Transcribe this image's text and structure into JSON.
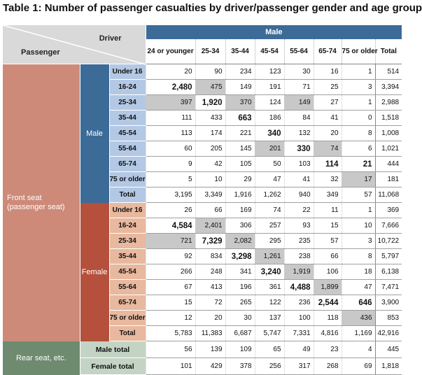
{
  "title": "Table 1: Number of passenger casualties by driver/passenger gender and age group",
  "corner": {
    "driver": "Driver",
    "passenger": "Passenger"
  },
  "male_header": "Male",
  "columns": [
    "24 or younger",
    "25-34",
    "35-44",
    "45-54",
    "55-64",
    "65-74",
    "75 or older",
    "Total"
  ],
  "front_seat_label": "Front seat\n(passenger seat)",
  "groups": [
    {
      "label": "Male",
      "rows": [
        {
          "age": "Under 16",
          "values": [
            "20",
            "90",
            "234",
            "123",
            "30",
            "16",
            "1",
            "514"
          ],
          "bold": [],
          "gray": []
        },
        {
          "age": "16-24",
          "values": [
            "2,480",
            "475",
            "149",
            "191",
            "71",
            "25",
            "3",
            "3,394"
          ],
          "bold": [
            0
          ],
          "gray": [
            1
          ]
        },
        {
          "age": "25-34",
          "values": [
            "397",
            "1,920",
            "370",
            "124",
            "149",
            "27",
            "1",
            "2,988"
          ],
          "bold": [
            1
          ],
          "gray": [
            0,
            2,
            4
          ]
        },
        {
          "age": "35-44",
          "values": [
            "111",
            "433",
            "663",
            "186",
            "84",
            "41",
            "0",
            "1,518"
          ],
          "bold": [
            2
          ],
          "gray": []
        },
        {
          "age": "45-54",
          "values": [
            "113",
            "174",
            "221",
            "340",
            "132",
            "20",
            "8",
            "1,008"
          ],
          "bold": [
            3
          ],
          "gray": []
        },
        {
          "age": "55-64",
          "values": [
            "60",
            "205",
            "145",
            "201",
            "330",
            "74",
            "6",
            "1,021"
          ],
          "bold": [
            4
          ],
          "gray": [
            3,
            5
          ]
        },
        {
          "age": "65-74",
          "values": [
            "9",
            "42",
            "105",
            "50",
            "103",
            "114",
            "21",
            "444"
          ],
          "bold": [
            5,
            6
          ],
          "gray": []
        },
        {
          "age": "75 or older",
          "values": [
            "5",
            "10",
            "29",
            "47",
            "41",
            "32",
            "17",
            "181"
          ],
          "bold": [],
          "gray": [
            6
          ]
        },
        {
          "age": "Total",
          "values": [
            "3,195",
            "3,349",
            "1,916",
            "1,262",
            "940",
            "349",
            "57",
            "11,068"
          ],
          "bold": [],
          "gray": [],
          "total": true
        }
      ]
    },
    {
      "label": "Female",
      "rows": [
        {
          "age": "Under 16",
          "values": [
            "26",
            "66",
            "169",
            "74",
            "22",
            "11",
            "1",
            "369"
          ],
          "bold": [],
          "gray": []
        },
        {
          "age": "16-24",
          "values": [
            "4,584",
            "2,401",
            "306",
            "257",
            "93",
            "15",
            "10",
            "7,666"
          ],
          "bold": [
            0
          ],
          "gray": [
            1
          ]
        },
        {
          "age": "25-34",
          "values": [
            "721",
            "7,329",
            "2,082",
            "295",
            "235",
            "57",
            "3",
            "10,722"
          ],
          "bold": [
            1
          ],
          "gray": [
            0,
            2
          ]
        },
        {
          "age": "35-44",
          "values": [
            "92",
            "834",
            "3,298",
            "1,261",
            "238",
            "66",
            "8",
            "5,797"
          ],
          "bold": [
            2
          ],
          "gray": [
            3
          ]
        },
        {
          "age": "45-54",
          "values": [
            "266",
            "248",
            "341",
            "3,240",
            "1,919",
            "106",
            "18",
            "6,138"
          ],
          "bold": [
            3
          ],
          "gray": [
            4
          ]
        },
        {
          "age": "55-64",
          "values": [
            "67",
            "413",
            "196",
            "361",
            "4,488",
            "1,899",
            "47",
            "7,471"
          ],
          "bold": [
            4
          ],
          "gray": [
            5
          ]
        },
        {
          "age": "65-74",
          "values": [
            "15",
            "72",
            "265",
            "122",
            "236",
            "2,544",
            "646",
            "3,900"
          ],
          "bold": [
            5,
            6
          ],
          "gray": []
        },
        {
          "age": "75 or older",
          "values": [
            "12",
            "20",
            "30",
            "137",
            "100",
            "118",
            "436",
            "853"
          ],
          "bold": [],
          "gray": [
            6
          ]
        },
        {
          "age": "Total",
          "values": [
            "5,783",
            "11,383",
            "6,687",
            "5,747",
            "7,331",
            "4,816",
            "1,169",
            "42,916"
          ],
          "bold": [],
          "gray": [],
          "total": true
        }
      ]
    }
  ],
  "rear": {
    "label": "Rear seat, etc.",
    "rows": [
      {
        "label": "Male total",
        "values": [
          "56",
          "139",
          "109",
          "65",
          "49",
          "23",
          "4",
          "445"
        ]
      },
      {
        "label": "Female total",
        "values": [
          "101",
          "429",
          "378",
          "256",
          "317",
          "268",
          "69",
          "1,818"
        ]
      }
    ]
  },
  "colors": {
    "male_blue": "#3d6b97",
    "male_age_bg": "#b3c8e4",
    "female_red": "#b5503d",
    "female_age_bg": "#e8b89f",
    "front_seat_bg": "#cd8a79",
    "rear_bg": "#6e8b6f",
    "rear_label_bg": "#c4d4c4",
    "highlight_gray": "#c8c8c8"
  }
}
